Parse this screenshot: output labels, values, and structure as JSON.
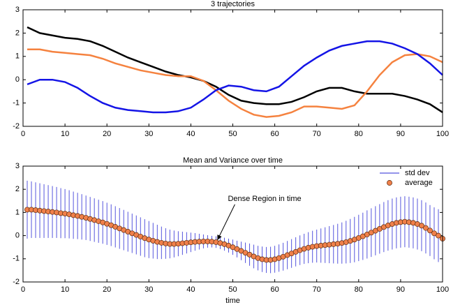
{
  "chart_data": [
    {
      "type": "line",
      "title": "3 trajectories",
      "x": [
        1,
        4,
        7,
        10,
        13,
        16,
        19,
        22,
        25,
        28,
        31,
        34,
        37,
        40,
        43,
        46,
        49,
        52,
        55,
        58,
        61,
        64,
        67,
        70,
        73,
        76,
        79,
        82,
        85,
        88,
        91,
        94,
        97,
        100
      ],
      "series": [
        {
          "color": "#000000",
          "values": [
            2.25,
            2.0,
            1.9,
            1.8,
            1.75,
            1.65,
            1.45,
            1.2,
            0.95,
            0.75,
            0.55,
            0.35,
            0.2,
            0.1,
            -0.05,
            -0.3,
            -0.65,
            -0.9,
            -1.0,
            -1.05,
            -1.05,
            -0.95,
            -0.75,
            -0.5,
            -0.35,
            -0.35,
            -0.5,
            -0.6,
            -0.6,
            -0.6,
            -0.7,
            -0.85,
            -1.05,
            -1.4
          ]
        },
        {
          "color": "#f5823f",
          "values": [
            1.3,
            1.3,
            1.2,
            1.15,
            1.1,
            1.05,
            0.9,
            0.7,
            0.55,
            0.4,
            0.3,
            0.2,
            0.15,
            0.15,
            -0.05,
            -0.45,
            -0.9,
            -1.25,
            -1.5,
            -1.6,
            -1.55,
            -1.4,
            -1.15,
            -1.15,
            -1.2,
            -1.25,
            -1.1,
            -0.5,
            0.2,
            0.75,
            1.05,
            1.1,
            1.0,
            0.75
          ]
        },
        {
          "color": "#1414e6",
          "values": [
            -0.2,
            0.0,
            0.0,
            -0.1,
            -0.35,
            -0.7,
            -1.0,
            -1.2,
            -1.3,
            -1.35,
            -1.4,
            -1.4,
            -1.35,
            -1.2,
            -0.85,
            -0.45,
            -0.25,
            -0.3,
            -0.45,
            -0.5,
            -0.3,
            0.15,
            0.6,
            0.95,
            1.25,
            1.45,
            1.55,
            1.65,
            1.65,
            1.55,
            1.35,
            1.1,
            0.7,
            0.2
          ]
        }
      ],
      "xlim": [
        0,
        100
      ],
      "xticks": [
        0,
        10,
        20,
        30,
        40,
        50,
        60,
        70,
        80,
        90,
        100
      ],
      "ylim": [
        -2,
        3
      ],
      "yticks": [
        -2,
        -1,
        0,
        1,
        2,
        3
      ]
    },
    {
      "type": "errorbar",
      "title": "Mean and Variance over time",
      "xlabel": "time",
      "annotation": "Dense Region in time",
      "legend": "upper right",
      "x": [
        1,
        2,
        3,
        4,
        5,
        6,
        7,
        8,
        9,
        10,
        11,
        12,
        13,
        14,
        15,
        16,
        17,
        18,
        19,
        20,
        21,
        22,
        23,
        24,
        25,
        26,
        27,
        28,
        29,
        30,
        31,
        32,
        33,
        34,
        35,
        36,
        37,
        38,
        39,
        40,
        41,
        42,
        43,
        44,
        45,
        46,
        47,
        48,
        49,
        50,
        51,
        52,
        53,
        54,
        55,
        56,
        57,
        58,
        59,
        60,
        61,
        62,
        63,
        64,
        65,
        66,
        67,
        68,
        69,
        70,
        71,
        72,
        73,
        74,
        75,
        76,
        77,
        78,
        79,
        80,
        81,
        82,
        83,
        84,
        85,
        86,
        87,
        88,
        89,
        90,
        91,
        92,
        93,
        94,
        95,
        96,
        97,
        98,
        99,
        100
      ],
      "series": [
        {
          "name": "std dev",
          "color": "#5555dd",
          "values": [
            1.25,
            1.22,
            1.2,
            1.18,
            1.16,
            1.14,
            1.12,
            1.1,
            1.08,
            1.06,
            1.04,
            1.02,
            1.0,
            0.98,
            0.96,
            0.95,
            0.94,
            0.93,
            0.92,
            0.91,
            0.9,
            0.89,
            0.88,
            0.87,
            0.86,
            0.85,
            0.84,
            0.83,
            0.82,
            0.8,
            0.77,
            0.74,
            0.7,
            0.66,
            0.62,
            0.58,
            0.54,
            0.5,
            0.46,
            0.42,
            0.38,
            0.34,
            0.3,
            0.27,
            0.25,
            0.25,
            0.26,
            0.28,
            0.3,
            0.33,
            0.36,
            0.4,
            0.44,
            0.48,
            0.51,
            0.53,
            0.55,
            0.56,
            0.57,
            0.58,
            0.59,
            0.6,
            0.61,
            0.62,
            0.63,
            0.64,
            0.65,
            0.67,
            0.69,
            0.71,
            0.74,
            0.77,
            0.8,
            0.83,
            0.86,
            0.89,
            0.92,
            0.95,
            0.98,
            1.0,
            1.02,
            1.04,
            1.05,
            1.06,
            1.07,
            1.08,
            1.09,
            1.1,
            1.1,
            1.1,
            1.1,
            1.1,
            1.1,
            1.1,
            1.1,
            1.1,
            1.1,
            1.12,
            1.14,
            1.15
          ]
        },
        {
          "name": "average",
          "color": "#f0804a",
          "values": [
            1.12,
            1.12,
            1.1,
            1.08,
            1.06,
            1.04,
            1.02,
            1.0,
            0.97,
            0.95,
            0.92,
            0.88,
            0.85,
            0.81,
            0.77,
            0.72,
            0.67,
            0.62,
            0.57,
            0.51,
            0.45,
            0.38,
            0.31,
            0.24,
            0.17,
            0.1,
            0.03,
            -0.04,
            -0.11,
            -0.17,
            -0.22,
            -0.27,
            -0.31,
            -0.34,
            -0.36,
            -0.36,
            -0.35,
            -0.33,
            -0.31,
            -0.29,
            -0.27,
            -0.26,
            -0.25,
            -0.25,
            -0.26,
            -0.28,
            -0.32,
            -0.37,
            -0.43,
            -0.5,
            -0.58,
            -0.66,
            -0.74,
            -0.82,
            -0.9,
            -0.97,
            -1.02,
            -1.05,
            -1.05,
            -1.02,
            -0.97,
            -0.91,
            -0.84,
            -0.77,
            -0.7,
            -0.63,
            -0.57,
            -0.52,
            -0.48,
            -0.45,
            -0.43,
            -0.41,
            -0.39,
            -0.37,
            -0.35,
            -0.32,
            -0.28,
            -0.23,
            -0.17,
            -0.1,
            -0.03,
            0.05,
            0.13,
            0.21,
            0.29,
            0.37,
            0.44,
            0.5,
            0.55,
            0.58,
            0.6,
            0.58,
            0.55,
            0.5,
            0.43,
            0.33,
            0.22,
            0.1,
            0.0,
            -0.13
          ]
        }
      ],
      "xlim": [
        0,
        100
      ],
      "xticks": [
        0,
        10,
        20,
        30,
        40,
        50,
        60,
        70,
        80,
        90,
        100
      ],
      "ylim": [
        -2,
        3
      ],
      "yticks": [
        -2,
        -1,
        0,
        1,
        2,
        3
      ]
    }
  ]
}
